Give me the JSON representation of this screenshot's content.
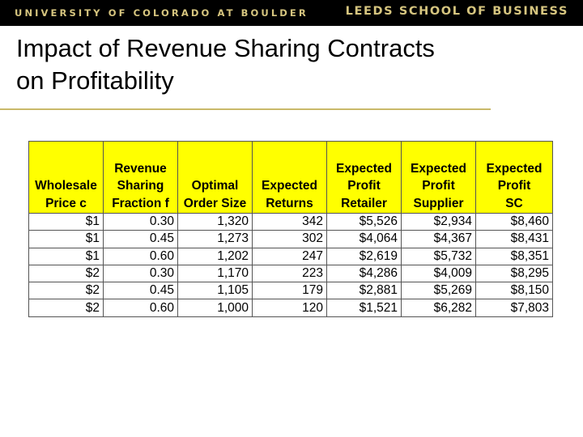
{
  "header": {
    "university": "UNIVERSITY OF COLORADO AT BOULDER",
    "school": "LEEDS SCHOOL OF BUSINESS"
  },
  "slide": {
    "title_line1": "Impact of Revenue Sharing Contracts",
    "title_line2": "on Profitability"
  },
  "table": {
    "headers": [
      [
        "",
        "",
        "Wholesale",
        "Price c"
      ],
      [
        "",
        "Revenue",
        "Sharing",
        "Fraction f"
      ],
      [
        "",
        "",
        "Optimal",
        "Order Size"
      ],
      [
        "",
        "",
        "Expected",
        "Returns"
      ],
      [
        "",
        "Expected",
        "Profit",
        "Retailer"
      ],
      [
        "",
        "Expected",
        "Profit",
        "Supplier"
      ],
      [
        "",
        "Expected",
        "Profit",
        "SC"
      ]
    ],
    "rows": [
      [
        "$1",
        "0.30",
        "1,320",
        "342",
        "$5,526",
        "$2,934",
        "$8,460"
      ],
      [
        "$1",
        "0.45",
        "1,273",
        "302",
        "$4,064",
        "$4,367",
        "$8,431"
      ],
      [
        "$1",
        "0.60",
        "1,202",
        "247",
        "$2,619",
        "$5,732",
        "$8,351"
      ],
      [
        "$2",
        "0.30",
        "1,170",
        "223",
        "$4,286",
        "$4,009",
        "$8,295"
      ],
      [
        "$2",
        "0.45",
        "1,105",
        "179",
        "$2,881",
        "$5,269",
        "$8,150"
      ],
      [
        "$2",
        "0.60",
        "1,000",
        "120",
        "$1,521",
        "$6,282",
        "$7,803"
      ]
    ]
  },
  "colors": {
    "header_fill": "#ffff00",
    "banner_text": "#d6c57f",
    "rule": "#c9b96a"
  }
}
